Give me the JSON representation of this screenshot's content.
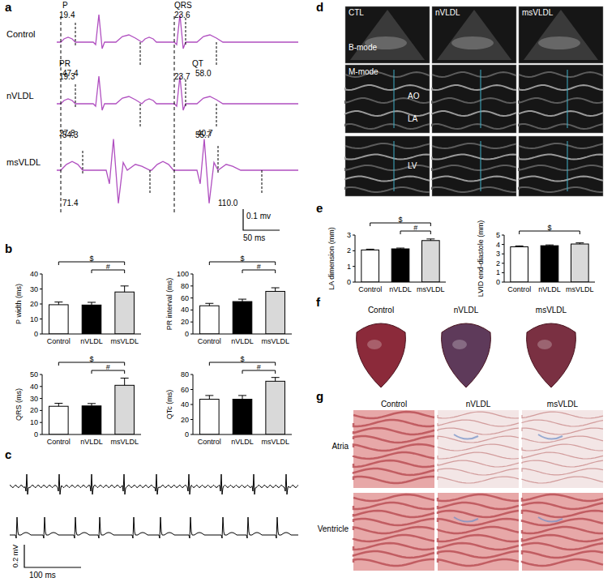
{
  "panel_labels": [
    "a",
    "b",
    "c",
    "d",
    "e",
    "f",
    "g"
  ],
  "ecg_intervals": {
    "names": {
      "p": "P",
      "pr": "PR",
      "qrs": "QRS",
      "qt": "QT"
    },
    "rows": [
      {
        "label": "Control",
        "p": "19.4",
        "pr": "47.4",
        "qrs": "23.6",
        "qt": "58.0"
      },
      {
        "label": "nVLDL",
        "p": "19.3",
        "pr": "54.3",
        "qrs": "23.7",
        "qt": "55.7"
      },
      {
        "label": "msVLDL",
        "p": "27.8",
        "pr": "71.4",
        "qrs": "40.7",
        "qt": "110.0"
      }
    ],
    "scale": {
      "voltage": "0.1 mv",
      "time": "50 ms"
    }
  },
  "chart_data": [
    {
      "type": "bar",
      "y_label": "P width (ms)",
      "categories": [
        "Control",
        "nVLDL",
        "msVLDL"
      ],
      "values": [
        19.5,
        19.3,
        28
      ],
      "errors": [
        1.8,
        1.8,
        4
      ],
      "colors": [
        "#ffffff",
        "#000000",
        "#d9d9d9"
      ],
      "ylim": [
        0,
        40
      ],
      "yticks": [
        0,
        10,
        20,
        30,
        40
      ],
      "brackets": [
        {
          "between": [
            "Control",
            "msVLDL"
          ],
          "label": "$"
        },
        {
          "between": [
            "nVLDL",
            "msVLDL"
          ],
          "label": "#"
        }
      ]
    },
    {
      "type": "bar",
      "y_label": "PR interval (ms)",
      "categories": [
        "Control",
        "nVLDL",
        "msVLDL"
      ],
      "values": [
        47,
        54,
        71
      ],
      "errors": [
        4,
        4,
        6
      ],
      "colors": [
        "#ffffff",
        "#000000",
        "#d9d9d9"
      ],
      "ylim": [
        0,
        100
      ],
      "yticks": [
        0,
        20,
        40,
        60,
        80,
        100
      ],
      "brackets": [
        {
          "between": [
            "Control",
            "msVLDL"
          ],
          "label": "$"
        },
        {
          "between": [
            "nVLDL",
            "msVLDL"
          ],
          "label": "#"
        }
      ]
    },
    {
      "type": "bar",
      "y_label": "QRS (ms)",
      "categories": [
        "Control",
        "nVLDL",
        "msVLDL"
      ],
      "values": [
        23.5,
        23.8,
        41
      ],
      "errors": [
        2.5,
        2,
        6
      ],
      "colors": [
        "#ffffff",
        "#000000",
        "#d9d9d9"
      ],
      "ylim": [
        0,
        50
      ],
      "yticks": [
        0,
        10,
        20,
        30,
        40,
        50
      ],
      "brackets": [
        {
          "between": [
            "Control",
            "msVLDL"
          ],
          "label": "$"
        },
        {
          "between": [
            "nVLDL",
            "msVLDL"
          ],
          "label": "#"
        }
      ]
    },
    {
      "type": "bar",
      "y_label": "QTc (ms)",
      "categories": [
        "Control",
        "nVLDL",
        "msVLDL"
      ],
      "values": [
        47,
        47,
        71
      ],
      "errors": [
        5,
        5,
        5
      ],
      "colors": [
        "#ffffff",
        "#000000",
        "#d9d9d9"
      ],
      "ylim": [
        0,
        80
      ],
      "yticks": [
        0,
        20,
        40,
        60,
        80
      ],
      "brackets": [
        {
          "between": [
            "Control",
            "msVLDL"
          ],
          "label": "$"
        },
        {
          "between": [
            "nVLDL",
            "msVLDL"
          ],
          "label": "#"
        }
      ]
    },
    {
      "type": "bar",
      "y_label": "LA dimension (mm)",
      "categories": [
        "Control",
        "nVLDL",
        "msVLDL"
      ],
      "values": [
        2.05,
        2.12,
        2.65
      ],
      "errors": [
        0.05,
        0.05,
        0.1
      ],
      "colors": [
        "#ffffff",
        "#000000",
        "#d9d9d9"
      ],
      "ylim": [
        0,
        3
      ],
      "yticks": [
        0,
        1,
        2,
        3
      ],
      "brackets": [
        {
          "between": [
            "Control",
            "msVLDL"
          ],
          "label": "$"
        },
        {
          "between": [
            "nVLDL",
            "msVLDL"
          ],
          "label": "#"
        }
      ]
    },
    {
      "type": "bar",
      "y_label": "LVID end-diastole (mm)",
      "categories": [
        "Control",
        "nVLDL",
        "msVLDL"
      ],
      "values": [
        3.75,
        3.87,
        4.05
      ],
      "errors": [
        0.1,
        0.08,
        0.12
      ],
      "colors": [
        "#ffffff",
        "#000000",
        "#d9d9d9"
      ],
      "ylim": [
        0,
        5
      ],
      "yticks": [
        0,
        1,
        2,
        3,
        4,
        5
      ],
      "brackets": [
        {
          "between": [
            "Control",
            "msVLDL"
          ],
          "label": "$"
        }
      ]
    }
  ],
  "arrhythmia_traces": {
    "scale": {
      "voltage": "0.2 mV",
      "time": "100 ms"
    }
  },
  "echo": {
    "columns": [
      "CTL",
      "nVLDL",
      "msVLDL"
    ],
    "modes": [
      "B-mode",
      "M-mode"
    ],
    "structures": [
      "AO",
      "LA",
      "LV"
    ]
  },
  "hearts": {
    "labels": [
      "Control",
      "nVLDL",
      "msVLDL"
    ]
  },
  "histology": {
    "columns": [
      "Control",
      "nVLDL",
      "msVLDL"
    ],
    "rows": [
      "Atria",
      "Ventricle"
    ]
  }
}
